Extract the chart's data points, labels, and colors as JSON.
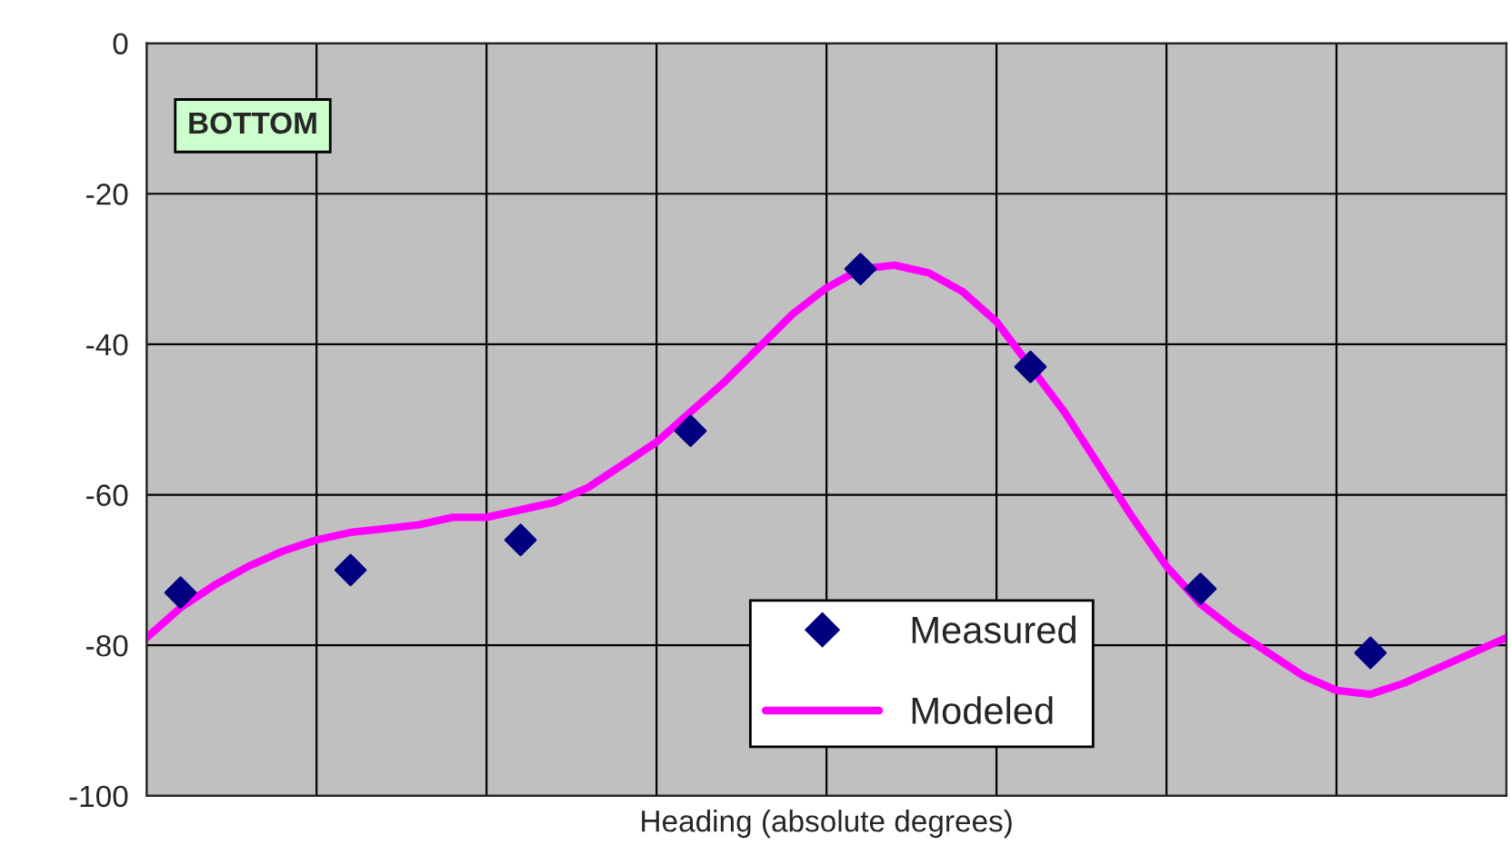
{
  "chart_data": {
    "type": "line",
    "xlabel": "Heading (absolute degrees)",
    "categories": [
      null,
      null,
      null,
      null,
      null,
      null,
      null,
      null,
      null,
      null,
      null,
      null,
      null,
      null,
      null,
      null,
      null,
      null,
      null,
      null,
      null,
      null,
      null,
      null,
      null,
      null,
      null,
      null,
      null,
      null,
      null,
      null,
      null,
      null,
      null,
      null,
      null,
      null,
      null,
      null,
      null
    ],
    "series": [
      {
        "name": "Measured",
        "type": "scatter",
        "color": "#000080",
        "marker": "diamond",
        "values": [
          null,
          -73,
          null,
          null,
          null,
          null,
          -70,
          null,
          null,
          null,
          null,
          -66,
          null,
          null,
          null,
          null,
          -51.5,
          null,
          null,
          null,
          null,
          -30,
          null,
          null,
          null,
          null,
          -43,
          null,
          null,
          null,
          null,
          -72.5,
          null,
          null,
          null,
          null,
          -81,
          null,
          null,
          null,
          null
        ]
      },
      {
        "name": "Modeled",
        "color": "#ff00ff",
        "line_style": "solid",
        "values": [
          -79,
          -75,
          -72,
          -69.5,
          -67.5,
          -66,
          -65,
          -64.5,
          -64,
          -63,
          -63,
          -62,
          -61,
          -59,
          -56,
          -53,
          -49,
          -45,
          -40.5,
          -36,
          -32.5,
          -30,
          -29.5,
          -30.5,
          -33,
          -37,
          -43,
          -49,
          -56,
          -63,
          -69.5,
          -74.5,
          -78,
          -81,
          -84,
          -86,
          -86.5,
          -85,
          -83,
          -81,
          -79
        ]
      }
    ],
    "ylim": [
      -100,
      0
    ],
    "yticks": [
      -100,
      -80,
      -60,
      -40,
      -20,
      0
    ],
    "grid": true,
    "legend": "bottom",
    "annotations": [
      "BOTTOM"
    ]
  }
}
